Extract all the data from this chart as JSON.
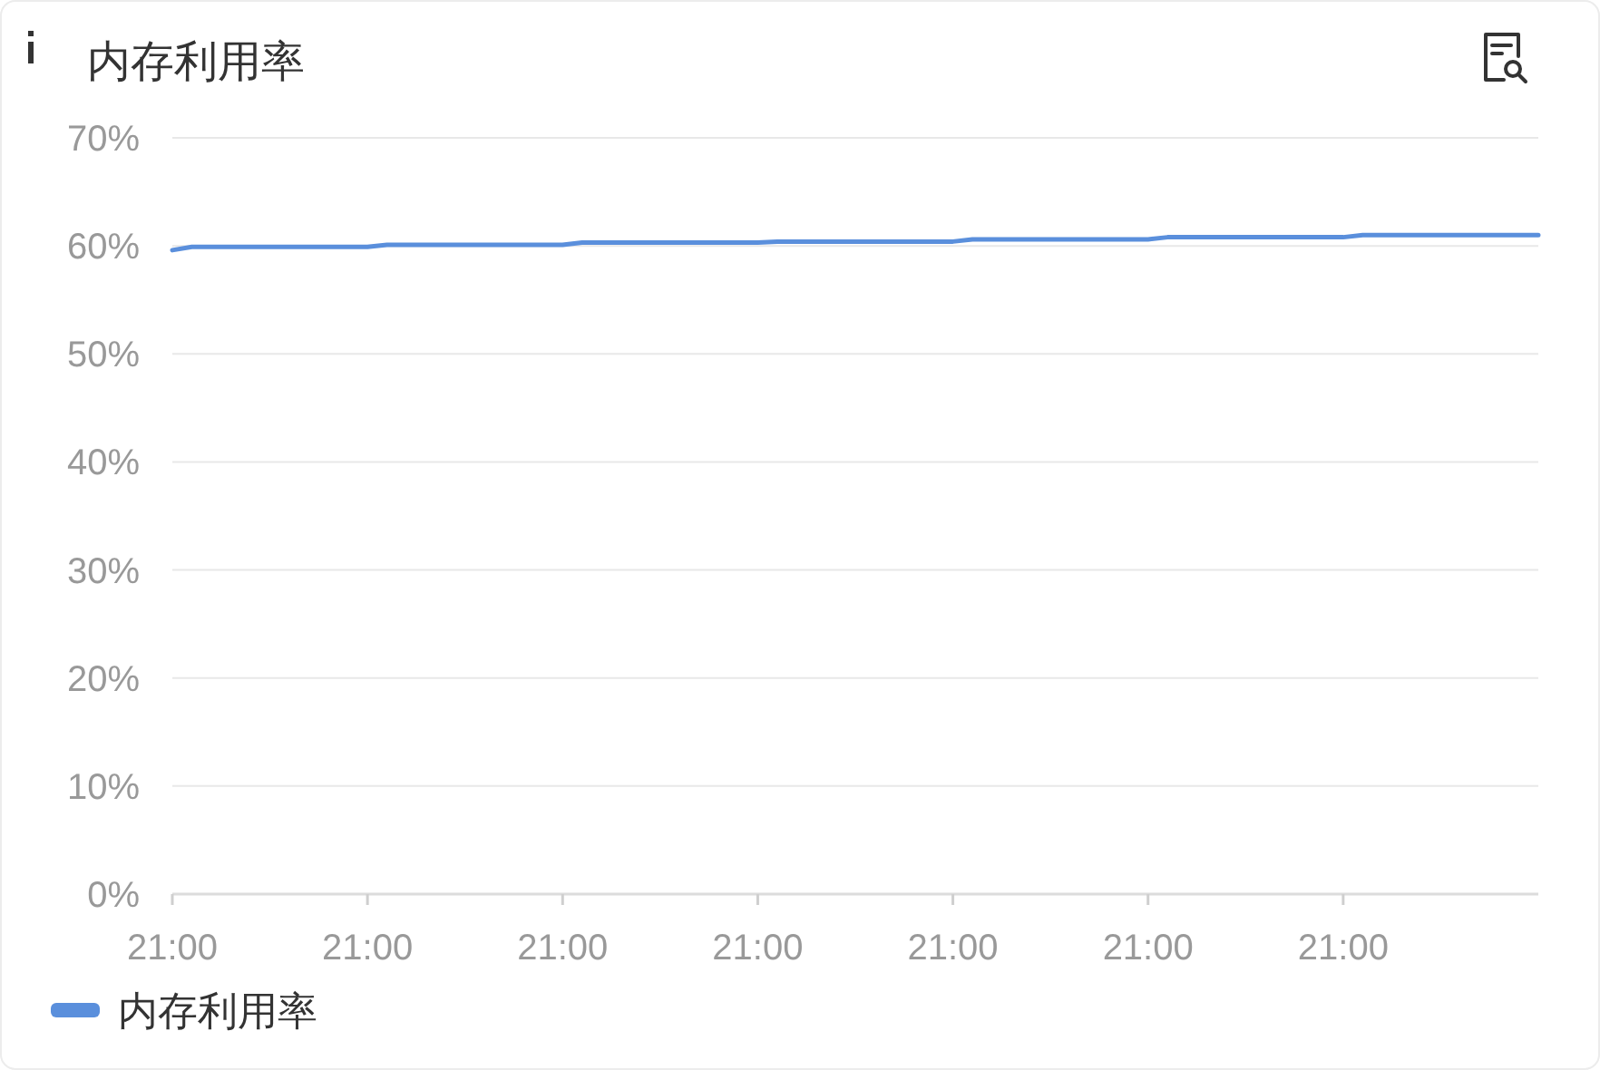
{
  "chart_data": {
    "type": "line",
    "title": "内存利用率",
    "categories": [
      "21:00",
      null,
      null,
      null,
      null,
      null,
      null,
      null,
      null,
      null,
      "21:00",
      null,
      null,
      null,
      null,
      null,
      null,
      null,
      null,
      null,
      "21:00",
      null,
      null,
      null,
      null,
      null,
      null,
      null,
      null,
      null,
      "21:00",
      null,
      null,
      null,
      null,
      null,
      null,
      null,
      null,
      null,
      "21:00",
      null,
      null,
      null,
      null,
      null,
      null,
      null,
      null,
      null,
      "21:00",
      null,
      null,
      null,
      null,
      null,
      null,
      null,
      null,
      null,
      "21:00",
      null,
      null,
      null,
      null,
      null,
      null,
      null,
      null,
      null,
      null
    ],
    "series": [
      {
        "name": "内存利用率",
        "color": "#5a8fdc",
        "values": [
          59.6,
          59.9,
          59.9,
          59.9,
          59.9,
          59.9,
          59.9,
          59.9,
          59.9,
          59.9,
          59.9,
          60.1,
          60.1,
          60.1,
          60.1,
          60.1,
          60.1,
          60.1,
          60.1,
          60.1,
          60.1,
          60.3,
          60.3,
          60.3,
          60.3,
          60.3,
          60.3,
          60.3,
          60.3,
          60.3,
          60.3,
          60.4,
          60.4,
          60.4,
          60.4,
          60.4,
          60.4,
          60.4,
          60.4,
          60.4,
          60.4,
          60.6,
          60.6,
          60.6,
          60.6,
          60.6,
          60.6,
          60.6,
          60.6,
          60.6,
          60.6,
          60.8,
          60.8,
          60.8,
          60.8,
          60.8,
          60.8,
          60.8,
          60.8,
          60.8,
          60.8,
          61.0,
          61.0,
          61.0,
          61.0,
          61.0,
          61.0,
          61.0,
          61.0,
          61.0,
          61.0
        ]
      }
    ],
    "ylim": [
      0,
      70
    ],
    "yticks": [
      {
        "value": 0,
        "label": "0%"
      },
      {
        "value": 10,
        "label": "10%"
      },
      {
        "value": 20,
        "label": "20%"
      },
      {
        "value": 30,
        "label": "30%"
      },
      {
        "value": 40,
        "label": "40%"
      },
      {
        "value": 50,
        "label": "50%"
      },
      {
        "value": 60,
        "label": "60%"
      },
      {
        "value": 70,
        "label": "70%"
      }
    ],
    "grid": "y",
    "legend": "bottom left",
    "line_style": "solid"
  }
}
